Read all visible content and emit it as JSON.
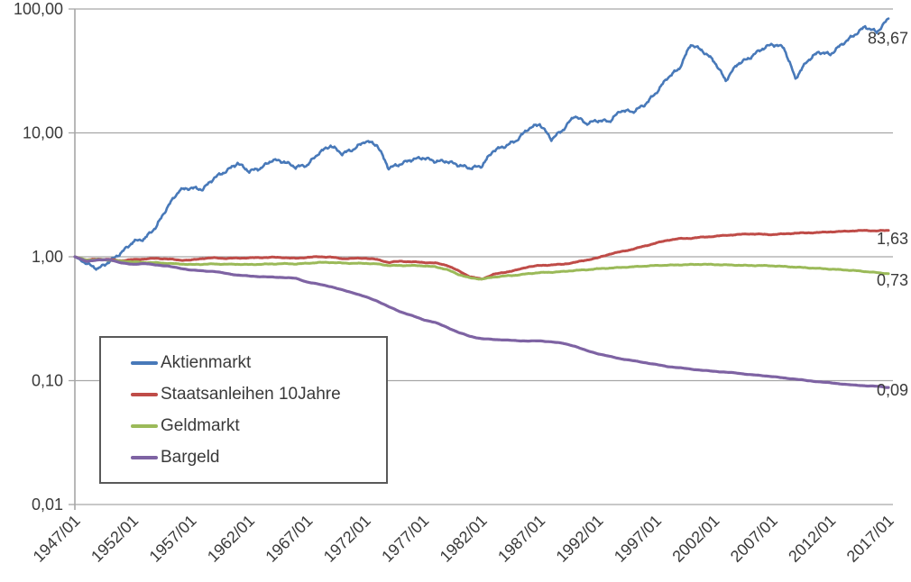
{
  "chart_data": {
    "type": "line",
    "title": "",
    "y_axis": {
      "scale": "log",
      "tick_labels": [
        "100,00",
        "10,00",
        "1,00",
        "0,10",
        "0,01"
      ],
      "tick_values": [
        100,
        10,
        1,
        0.1,
        0.01
      ],
      "range": [
        0.01,
        100
      ]
    },
    "x_axis": {
      "tick_labels": [
        "1947/01",
        "1952/01",
        "1957/01",
        "1962/01",
        "1967/01",
        "1972/01",
        "1977/01",
        "1982/01",
        "1987/01",
        "1992/01",
        "1997/01",
        "2002/01",
        "2007/01",
        "2012/01",
        "2017/01"
      ],
      "tick_years": [
        1947,
        1952,
        1957,
        1962,
        1967,
        1972,
        1977,
        1982,
        1987,
        1992,
        1997,
        2002,
        2007,
        2012,
        2017
      ],
      "range_years": [
        1947,
        2017
      ]
    },
    "grid": "horizontal-only",
    "legend_position": "inside-bottom-left",
    "years": [
      1947,
      1948,
      1949,
      1950,
      1951,
      1952,
      1953,
      1954,
      1955,
      1956,
      1957,
      1958,
      1959,
      1960,
      1961,
      1962,
      1963,
      1964,
      1965,
      1966,
      1967,
      1968,
      1969,
      1970,
      1971,
      1972,
      1973,
      1974,
      1975,
      1976,
      1977,
      1978,
      1979,
      1980,
      1981,
      1982,
      1983,
      1984,
      1985,
      1986,
      1987,
      1988,
      1989,
      1990,
      1991,
      1992,
      1993,
      1994,
      1995,
      1996,
      1997,
      1998,
      1999,
      2000,
      2001,
      2002,
      2003,
      2004,
      2005,
      2006,
      2007,
      2008,
      2009,
      2010,
      2011,
      2012,
      2013,
      2014,
      2015,
      2016,
      2017
    ],
    "series": [
      {
        "key": "aktienmarkt",
        "name": "Aktienmarkt",
        "color": "#4879b9",
        "end_label": "83,67",
        "end_value": 83.67,
        "values": [
          1.0,
          0.88,
          0.8,
          0.92,
          1.08,
          1.32,
          1.4,
          1.75,
          2.55,
          3.45,
          3.6,
          3.5,
          4.35,
          4.9,
          5.7,
          4.9,
          5.2,
          6.05,
          5.85,
          5.3,
          5.5,
          6.9,
          7.9,
          6.8,
          7.4,
          8.6,
          8.0,
          5.2,
          5.6,
          6.1,
          6.3,
          5.9,
          5.9,
          5.5,
          5.2,
          5.4,
          7.2,
          7.8,
          8.7,
          10.8,
          11.8,
          8.9,
          10.6,
          13.8,
          11.9,
          12.6,
          12.4,
          15.2,
          14.8,
          16.8,
          21.0,
          28.0,
          33.0,
          52.0,
          46.0,
          38.0,
          26.5,
          36.0,
          40.0,
          47.0,
          52.0,
          49.0,
          27.5,
          38.0,
          45.0,
          43.0,
          52.0,
          61.0,
          72.0,
          65.0,
          83.67
        ]
      },
      {
        "key": "staatsanleihen",
        "name": "Staatsanleihen 10Jahre",
        "color": "#bf4c48",
        "end_label": "1,63",
        "end_value": 1.63,
        "values": [
          1.0,
          0.94,
          0.96,
          0.95,
          0.93,
          0.95,
          0.96,
          0.97,
          0.96,
          0.94,
          0.94,
          0.97,
          0.98,
          0.97,
          0.975,
          0.98,
          0.985,
          0.99,
          0.985,
          0.97,
          0.99,
          1.0,
          0.995,
          0.965,
          0.97,
          0.975,
          0.95,
          0.9,
          0.92,
          0.91,
          0.9,
          0.89,
          0.855,
          0.77,
          0.69,
          0.66,
          0.72,
          0.75,
          0.78,
          0.83,
          0.85,
          0.86,
          0.87,
          0.9,
          0.94,
          0.98,
          1.05,
          1.1,
          1.15,
          1.22,
          1.29,
          1.36,
          1.4,
          1.41,
          1.44,
          1.46,
          1.49,
          1.51,
          1.53,
          1.52,
          1.51,
          1.53,
          1.55,
          1.56,
          1.57,
          1.59,
          1.6,
          1.62,
          1.63,
          1.62,
          1.63
        ]
      },
      {
        "key": "geldmarkt",
        "name": "Geldmarkt",
        "color": "#9bba59",
        "end_label": "0,73",
        "end_value": 0.73,
        "values": [
          1.0,
          0.94,
          0.95,
          0.94,
          0.92,
          0.91,
          0.9,
          0.895,
          0.885,
          0.875,
          0.865,
          0.87,
          0.875,
          0.87,
          0.87,
          0.865,
          0.87,
          0.875,
          0.88,
          0.875,
          0.885,
          0.9,
          0.9,
          0.89,
          0.885,
          0.885,
          0.875,
          0.85,
          0.85,
          0.85,
          0.845,
          0.83,
          0.79,
          0.72,
          0.675,
          0.66,
          0.685,
          0.7,
          0.71,
          0.73,
          0.745,
          0.75,
          0.76,
          0.775,
          0.785,
          0.8,
          0.81,
          0.82,
          0.83,
          0.84,
          0.85,
          0.855,
          0.86,
          0.865,
          0.87,
          0.865,
          0.86,
          0.855,
          0.85,
          0.85,
          0.845,
          0.835,
          0.825,
          0.815,
          0.805,
          0.795,
          0.785,
          0.775,
          0.76,
          0.745,
          0.73
        ]
      },
      {
        "key": "bargeld",
        "name": "Bargeld",
        "color": "#7e63a3",
        "end_label": "0,09",
        "end_value": 0.088,
        "values": [
          1.0,
          0.92,
          0.94,
          0.95,
          0.89,
          0.87,
          0.88,
          0.86,
          0.84,
          0.81,
          0.78,
          0.77,
          0.76,
          0.735,
          0.71,
          0.7,
          0.69,
          0.685,
          0.68,
          0.67,
          0.625,
          0.6,
          0.575,
          0.54,
          0.51,
          0.475,
          0.44,
          0.395,
          0.36,
          0.335,
          0.31,
          0.295,
          0.27,
          0.245,
          0.228,
          0.218,
          0.215,
          0.213,
          0.21,
          0.209,
          0.209,
          0.206,
          0.2,
          0.19,
          0.175,
          0.165,
          0.157,
          0.15,
          0.145,
          0.14,
          0.135,
          0.13,
          0.127,
          0.124,
          0.121,
          0.119,
          0.117,
          0.115,
          0.112,
          0.11,
          0.108,
          0.105,
          0.103,
          0.1,
          0.098,
          0.096,
          0.094,
          0.092,
          0.091,
          0.09,
          0.088
        ]
      }
    ],
    "colors": {
      "gridline": "#a6a6a6",
      "axis_line": "#a6a6a6",
      "label_text": "#3a3a3a"
    }
  }
}
